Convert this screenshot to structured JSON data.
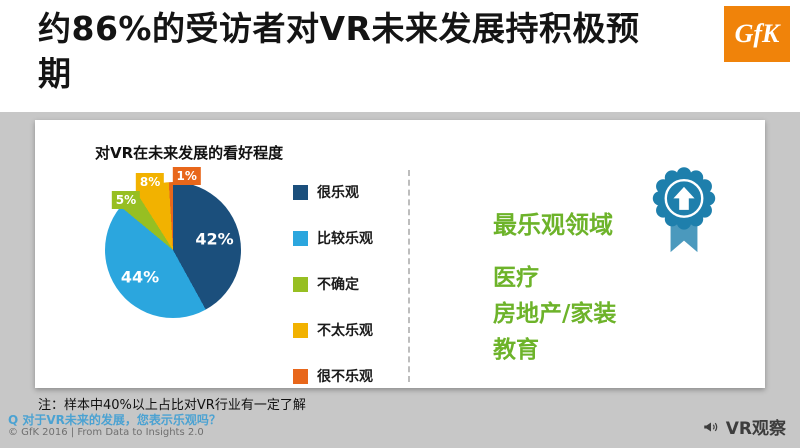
{
  "header": {
    "title": "约86%的受访者对VR未来发展持积极预期",
    "logo_text": "GfK",
    "logo_bg": "#F0830A"
  },
  "chart_data": {
    "type": "pie",
    "title": "对VR在未来发展的看好程度",
    "label_format": "percent",
    "legend_position": "right",
    "slices": [
      {
        "label": "很乐观",
        "value": 42,
        "color": "#1B4F7C"
      },
      {
        "label": "比较乐观",
        "value": 44,
        "color": "#2BA6DE"
      },
      {
        "label": "不确定",
        "value": 5,
        "color": "#97BF22"
      },
      {
        "label": "不太乐观",
        "value": 8,
        "color": "#F2B200"
      },
      {
        "label": "很不乐观",
        "value": 1,
        "color": "#E8671B"
      }
    ]
  },
  "right_panel": {
    "heading": "最乐观领域",
    "items": [
      "医疗",
      "房地产/家装",
      "教育"
    ],
    "badge_icon": "rosette-up-arrow-icon",
    "accent_color": "#6DB32A",
    "badge_color": "#1E7FAC"
  },
  "footnote": "注：样本中40%以上占比对VR行业有一定了解",
  "footer": {
    "watermark_question": "Q 对于VR未来的发展，您表示乐观吗？",
    "copyright": "© GfK 2016 | From Data to Insights 2.0",
    "wechat_label": "VR观察"
  }
}
